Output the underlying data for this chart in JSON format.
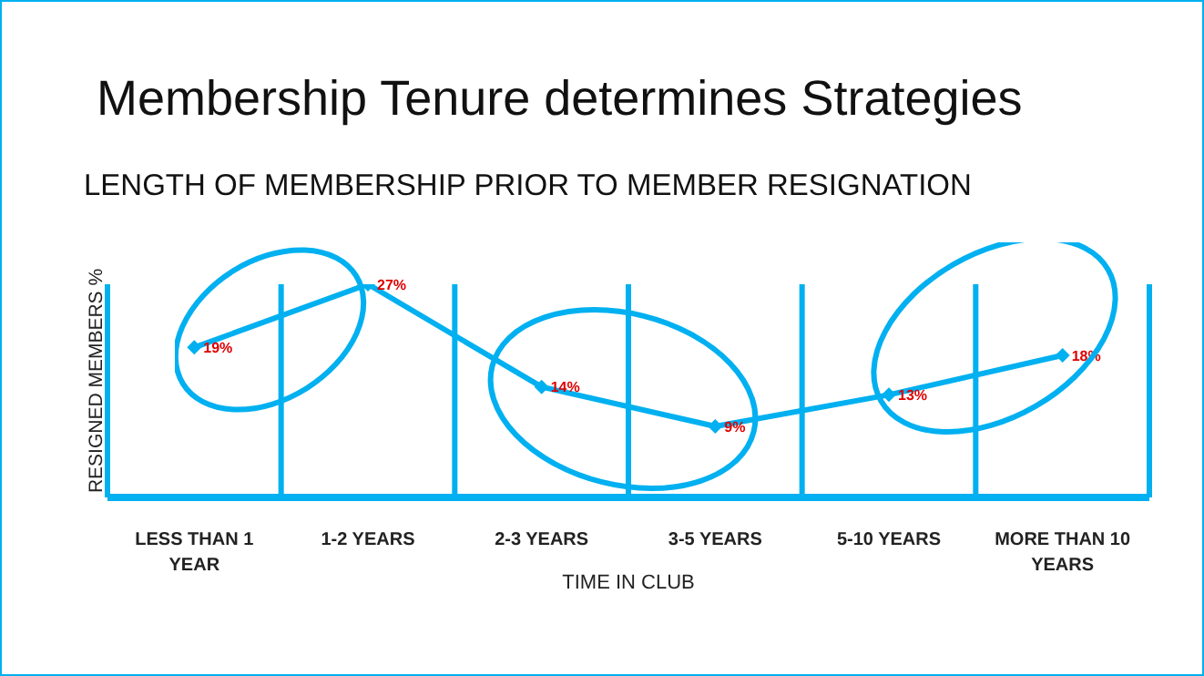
{
  "chart_data": {
    "type": "line",
    "title": "Membership Tenure determines Strategies",
    "subtitle": "LENGTH OF MEMBERSHIP PRIOR TO MEMBER RESIGNATION",
    "xlabel": "TIME IN CLUB",
    "ylabel": "RESIGNED MEMBERS %",
    "categories": [
      "LESS THAN 1 YEAR",
      "1-2 YEARS",
      "2-3 YEARS",
      "3-5 YEARS",
      "5-10 YEARS",
      "MORE THAN 10 YEARS"
    ],
    "series": [
      {
        "color": "#00b0f0",
        "values": [
          19,
          27,
          14,
          9,
          13,
          18
        ],
        "value_labels": [
          "19%",
          "27%",
          "14%",
          "9%",
          "13%",
          "18%"
        ]
      }
    ],
    "tick_labels": "x",
    "grid": "x",
    "marker": "diamond",
    "line_style": "solid",
    "legend": false
  }
}
